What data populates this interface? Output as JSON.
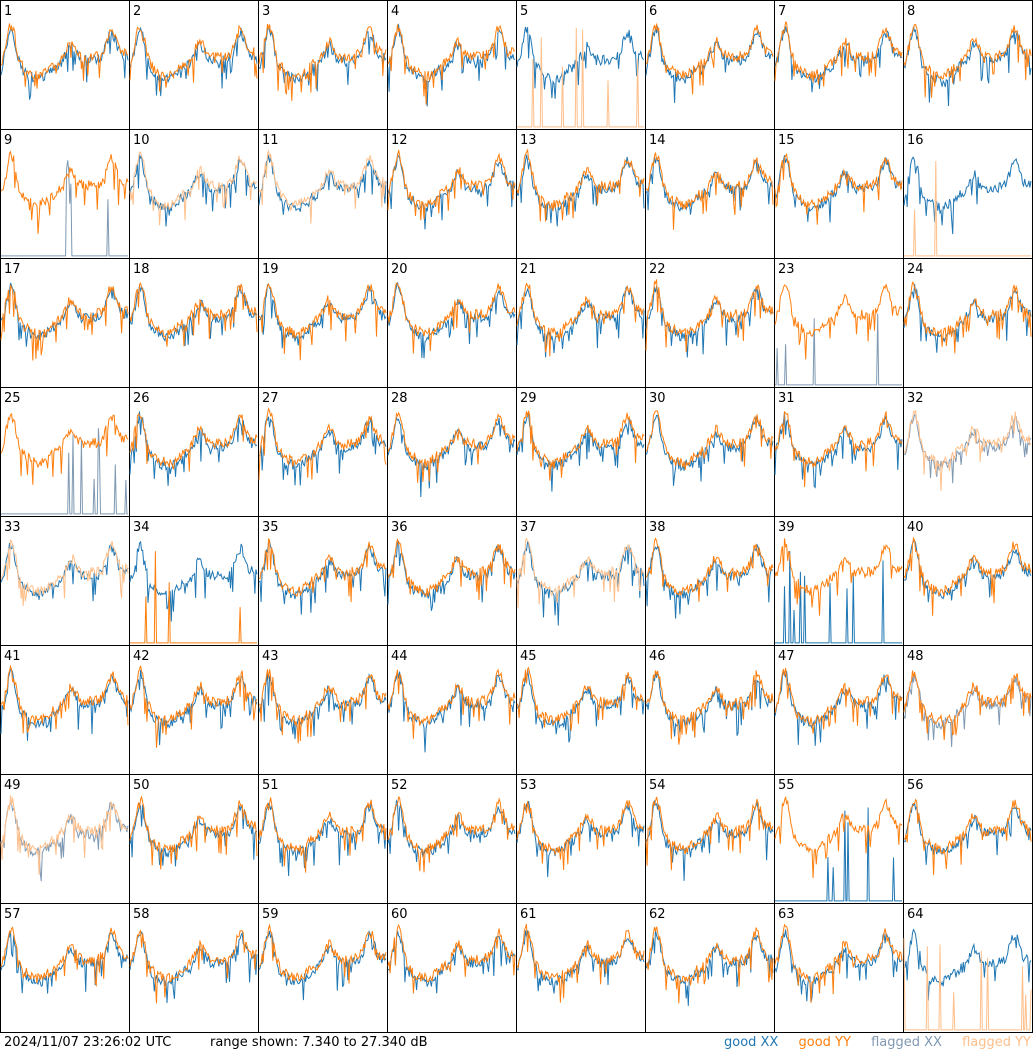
{
  "footer": {
    "timestamp": "2024/11/07 23:26:02 UTC",
    "range_text": "range shown: 7.340 to 27.340 dB"
  },
  "legend": [
    {
      "label": "good XX",
      "color": "#1f77b4"
    },
    {
      "label": "good YY",
      "color": "#ff7f0e"
    },
    {
      "label": "flagged XX",
      "color": "#7f99b3"
    },
    {
      "label": "flagged YY",
      "color": "#ffbf8a"
    }
  ],
  "chart_data": {
    "type": "line",
    "layout": "8x8 small multiples",
    "ylim_db": [
      7.34,
      27.34
    ],
    "x_ticks": false,
    "panels": [
      {
        "label": "1",
        "xx": "good",
        "yy": "good"
      },
      {
        "label": "2",
        "xx": "good",
        "yy": "good"
      },
      {
        "label": "3",
        "xx": "good",
        "yy": "good"
      },
      {
        "label": "4",
        "xx": "good",
        "yy": "good"
      },
      {
        "label": "5",
        "xx": "good",
        "yy": "flagged",
        "note": "YY mostly at floor with spikes"
      },
      {
        "label": "6",
        "xx": "good",
        "yy": "good"
      },
      {
        "label": "7",
        "xx": "good",
        "yy": "good"
      },
      {
        "label": "8",
        "xx": "good",
        "yy": "good"
      },
      {
        "label": "9",
        "xx": "flagged",
        "yy": "good",
        "note": "XX mostly at floor with spikes"
      },
      {
        "label": "10",
        "xx": "good",
        "yy": "flagged"
      },
      {
        "label": "11",
        "xx": "good",
        "yy": "flagged"
      },
      {
        "label": "12",
        "xx": "good",
        "yy": "good",
        "note": "XX drops at end"
      },
      {
        "label": "13",
        "xx": "good",
        "yy": "good"
      },
      {
        "label": "14",
        "xx": "good",
        "yy": "good"
      },
      {
        "label": "15",
        "xx": "good",
        "yy": "good"
      },
      {
        "label": "16",
        "xx": "good",
        "yy": "flagged",
        "note": "YY mostly at floor with spikes"
      },
      {
        "label": "17",
        "xx": "good",
        "yy": "good"
      },
      {
        "label": "18",
        "xx": "good",
        "yy": "good"
      },
      {
        "label": "19",
        "xx": "good",
        "yy": "good"
      },
      {
        "label": "20",
        "xx": "good",
        "yy": "good"
      },
      {
        "label": "21",
        "xx": "good",
        "yy": "good"
      },
      {
        "label": "22",
        "xx": "good",
        "yy": "good"
      },
      {
        "label": "23",
        "xx": "flagged",
        "yy": "good",
        "note": "XX low with spikes"
      },
      {
        "label": "24",
        "xx": "good",
        "yy": "good"
      },
      {
        "label": "25",
        "xx": "flagged",
        "yy": "good",
        "note": "XX near floor"
      },
      {
        "label": "26",
        "xx": "good",
        "yy": "good"
      },
      {
        "label": "27",
        "xx": "good",
        "yy": "good",
        "note": "XX noisy then smooth"
      },
      {
        "label": "28",
        "xx": "good",
        "yy": "good"
      },
      {
        "label": "29",
        "xx": "good",
        "yy": "good"
      },
      {
        "label": "30",
        "xx": "good",
        "yy": "good"
      },
      {
        "label": "31",
        "xx": "good",
        "yy": "good"
      },
      {
        "label": "32",
        "xx": "flagged",
        "yy": "flagged"
      },
      {
        "label": "33",
        "xx": "good",
        "yy": "flagged"
      },
      {
        "label": "34",
        "xx": "good",
        "yy": "good",
        "note": "YY at floor with spikes"
      },
      {
        "label": "35",
        "xx": "good",
        "yy": "good"
      },
      {
        "label": "36",
        "xx": "good",
        "yy": "good"
      },
      {
        "label": "37",
        "xx": "good",
        "yy": "flagged"
      },
      {
        "label": "38",
        "xx": "good",
        "yy": "good"
      },
      {
        "label": "39",
        "xx": "good",
        "yy": "good",
        "note": "XX at floor with spikes"
      },
      {
        "label": "40",
        "xx": "good",
        "yy": "good"
      },
      {
        "label": "41",
        "xx": "good",
        "yy": "good"
      },
      {
        "label": "42",
        "xx": "good",
        "yy": "good"
      },
      {
        "label": "43",
        "xx": "good",
        "yy": "good"
      },
      {
        "label": "44",
        "xx": "good",
        "yy": "good"
      },
      {
        "label": "45",
        "xx": "good",
        "yy": "good"
      },
      {
        "label": "46",
        "xx": "good",
        "yy": "good"
      },
      {
        "label": "47",
        "xx": "good",
        "yy": "good"
      },
      {
        "label": "48",
        "xx": "flagged",
        "yy": "good"
      },
      {
        "label": "49",
        "xx": "flagged",
        "yy": "flagged"
      },
      {
        "label": "50",
        "xx": "good",
        "yy": "good"
      },
      {
        "label": "51",
        "xx": "good",
        "yy": "good"
      },
      {
        "label": "52",
        "xx": "good",
        "yy": "good"
      },
      {
        "label": "53",
        "xx": "good",
        "yy": "good",
        "note": "YY smooth dip"
      },
      {
        "label": "54",
        "xx": "good",
        "yy": "good"
      },
      {
        "label": "55",
        "xx": "good",
        "yy": "good",
        "note": "XX at floor with spikes"
      },
      {
        "label": "56",
        "xx": "good",
        "yy": "good"
      },
      {
        "label": "57",
        "xx": "good",
        "yy": "good"
      },
      {
        "label": "58",
        "xx": "good",
        "yy": "good"
      },
      {
        "label": "59",
        "xx": "good",
        "yy": "good"
      },
      {
        "label": "60",
        "xx": "good",
        "yy": "good"
      },
      {
        "label": "61",
        "xx": "good",
        "yy": "good"
      },
      {
        "label": "62",
        "xx": "good",
        "yy": "good"
      },
      {
        "label": "63",
        "xx": "good",
        "yy": "good"
      },
      {
        "label": "64",
        "xx": "good",
        "yy": "flagged",
        "note": "YY mostly at floor with spikes"
      }
    ]
  }
}
